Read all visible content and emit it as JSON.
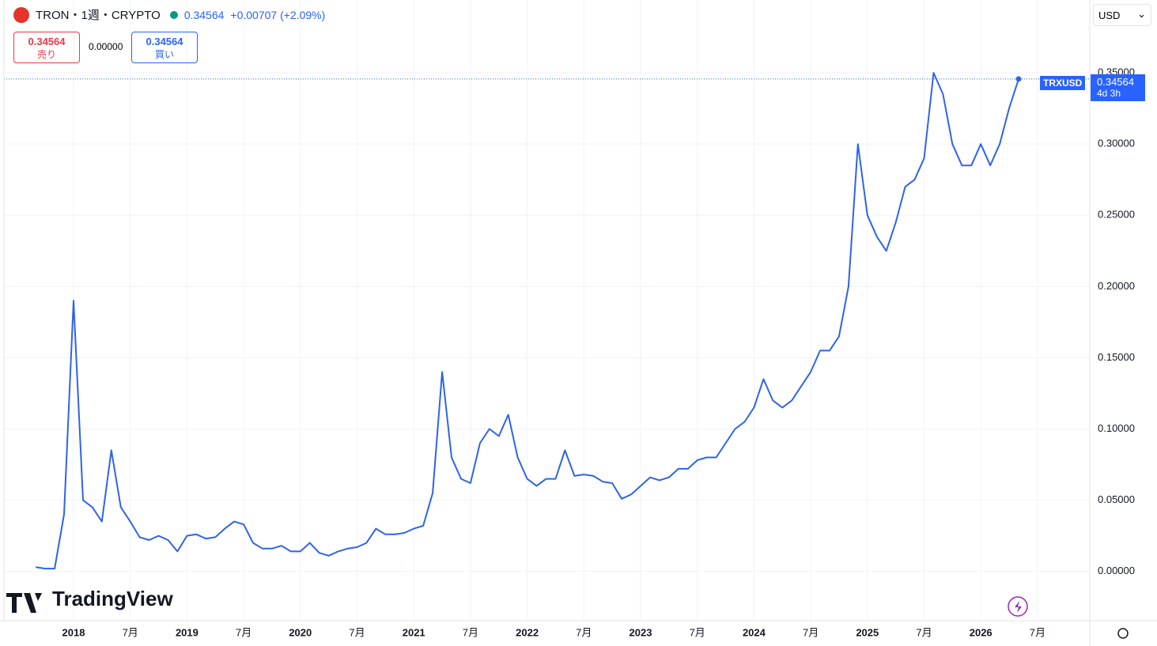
{
  "ui": {
    "symbol": "TRON・1週・CRYPTO",
    "price": "0.34564",
    "change": "+0.00707 (+2.09%)",
    "sell_price": "0.34564",
    "sell_label": "売り",
    "spread": "0.00000",
    "buy_price": "0.34564",
    "buy_label": "買い",
    "currency": "USD",
    "ticker_tag": "TRXUSD",
    "tag_price": "0.34564",
    "tag_countdown": "4d 3h",
    "brand": "TradingView"
  },
  "chart_data": {
    "type": "line",
    "categories": [
      null,
      null,
      null,
      null,
      "2018",
      null,
      null,
      null,
      null,
      null,
      "7月",
      null,
      null,
      null,
      null,
      null,
      "2019",
      null,
      null,
      null,
      null,
      null,
      "7月",
      null,
      null,
      null,
      null,
      null,
      "2020",
      null,
      null,
      null,
      null,
      null,
      "7月",
      null,
      null,
      null,
      null,
      null,
      "2021",
      null,
      null,
      null,
      null,
      null,
      "7月",
      null,
      null,
      null,
      null,
      null,
      "2022",
      null,
      null,
      null,
      null,
      null,
      "7月",
      null,
      null,
      null,
      null,
      null,
      "2023",
      null,
      null,
      null,
      null,
      null,
      "7月",
      null,
      null,
      null,
      null,
      null,
      "2024",
      null,
      null,
      null,
      null,
      null,
      "7月",
      null,
      null,
      null,
      null,
      null,
      "2025",
      null,
      null,
      null,
      null,
      null,
      "7月",
      null,
      null,
      null,
      null,
      null,
      "2026",
      null,
      null,
      null,
      null,
      null,
      "7月"
    ],
    "series": [
      {
        "name": "TRXUSD",
        "color": "#2f63e8",
        "values": [
          0.003,
          0.002,
          0.002,
          0.04,
          0.19,
          0.05,
          0.045,
          0.035,
          0.085,
          0.045,
          0.035,
          0.024,
          0.022,
          0.025,
          0.022,
          0.014,
          0.025,
          0.026,
          0.023,
          0.024,
          0.03,
          0.035,
          0.033,
          0.02,
          0.016,
          0.016,
          0.018,
          0.014,
          0.014,
          0.02,
          0.013,
          0.011,
          0.014,
          0.016,
          0.017,
          0.02,
          0.03,
          0.026,
          0.026,
          0.027,
          0.03,
          0.032,
          0.055,
          0.14,
          0.08,
          0.065,
          0.062,
          0.09,
          0.1,
          0.095,
          0.11,
          0.08,
          0.065,
          0.06,
          0.065,
          0.065,
          0.085,
          0.067,
          0.068,
          0.067,
          0.063,
          0.062,
          0.051,
          0.054,
          0.06,
          0.066,
          0.064,
          0.066,
          0.072,
          0.072,
          0.078,
          0.08,
          0.08,
          0.09,
          0.1,
          0.105,
          0.115,
          0.135,
          0.12,
          0.115,
          0.12,
          0.13,
          0.14,
          0.155,
          0.155,
          0.165,
          0.2,
          0.3,
          0.25,
          0.235,
          0.225,
          0.245,
          0.27,
          0.275,
          0.29,
          0.35,
          0.335,
          0.3,
          0.285,
          0.285,
          0.3,
          0.285,
          0.3,
          0.325,
          0.34564,
          null,
          null
        ]
      }
    ],
    "ylim": [
      -0.0346,
      0.4011
    ],
    "yticks": [
      {
        "value": 0,
        "label": "0.00000"
      },
      {
        "value": 0.05,
        "label": "0.05000"
      },
      {
        "value": 0.1,
        "label": "0.10000"
      },
      {
        "value": 0.15,
        "label": "0.15000"
      },
      {
        "value": 0.2,
        "label": "0.20000"
      },
      {
        "value": 0.25,
        "label": "0.25000"
      },
      {
        "value": 0.3,
        "label": "0.30000"
      },
      {
        "value": 0.35,
        "label": "0.35000"
      }
    ],
    "grid": true
  }
}
